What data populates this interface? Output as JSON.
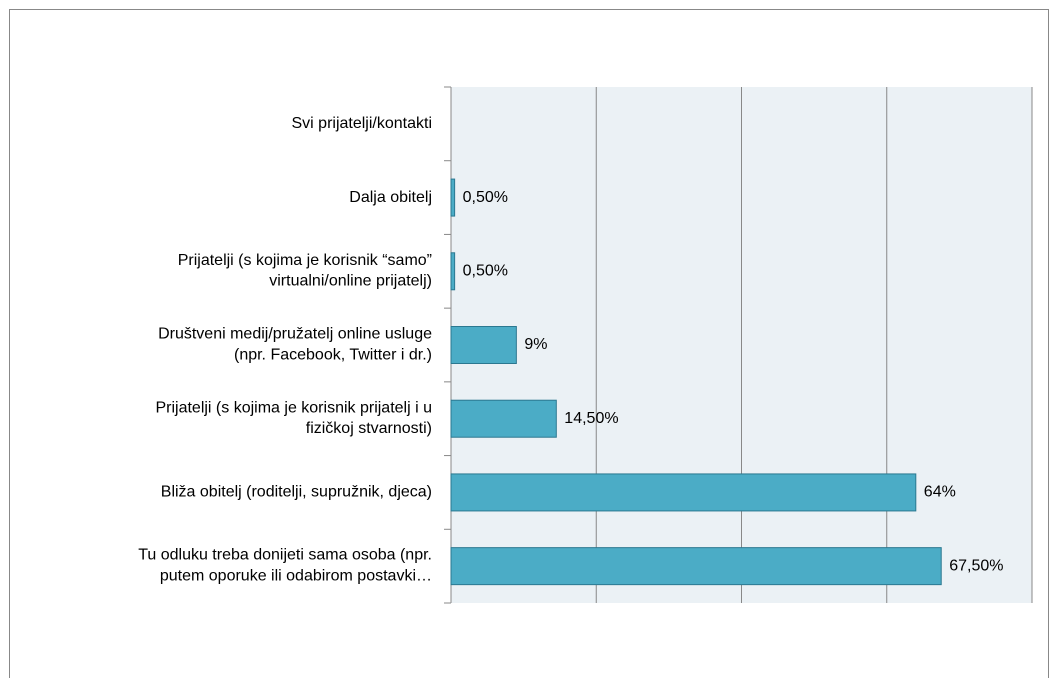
{
  "chart_data": {
    "type": "bar",
    "orientation": "horizontal",
    "categories": [
      "Svi prijatelji/kontakti",
      "Dalja obitelj",
      "Prijatelji (s kojima je korisnik “samo”\nvirtualni/online prijatelj)",
      "Društveni medij/pružatelj online usluge\n(npr. Facebook, Twitter i dr.)",
      "Prijatelji (s kojima je korisnik prijatelj i u\nfizičkoj stvarnosti)",
      "Bliža obitelj (roditelji, supružnik, djeca)",
      "Tu odluku treba donijeti sama osoba (npr.\nputem oporuke ili odabirom postavki…"
    ],
    "values": [
      0,
      0.5,
      0.5,
      9,
      14.5,
      64,
      67.5
    ],
    "value_labels": [
      null,
      "0,50%",
      "0,50%",
      "9%",
      "14,50%",
      "64%",
      "67,50%"
    ],
    "color": "#4bacc6",
    "xlim": [
      0,
      80
    ],
    "xticks": [
      0,
      20,
      40,
      60,
      80
    ],
    "grid": true
  }
}
